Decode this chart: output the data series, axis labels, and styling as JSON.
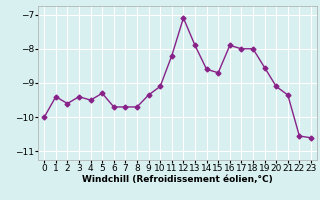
{
  "x": [
    0,
    1,
    2,
    3,
    4,
    5,
    6,
    7,
    8,
    9,
    10,
    11,
    12,
    13,
    14,
    15,
    16,
    17,
    18,
    19,
    20,
    21,
    22,
    23
  ],
  "y": [
    -10.0,
    -9.4,
    -9.6,
    -9.4,
    -9.5,
    -9.3,
    -9.7,
    -9.7,
    -9.7,
    -9.35,
    -9.1,
    -8.2,
    -7.1,
    -7.9,
    -8.6,
    -8.7,
    -7.9,
    -8.0,
    -8.0,
    -8.55,
    -9.1,
    -9.35,
    -10.55,
    -10.6
  ],
  "line_color": "#882288",
  "marker": "D",
  "markersize": 2.5,
  "linewidth": 1.0,
  "bg_color": "#d8f0f0",
  "grid_color": "#ffffff",
  "xlabel": "Windchill (Refroidissement éolien,°C)",
  "xlim": [
    -0.5,
    23.5
  ],
  "ylim": [
    -11.25,
    -6.75
  ],
  "yticks": [
    -11,
    -10,
    -9,
    -8,
    -7
  ],
  "xtick_labels": [
    "0",
    "1",
    "2",
    "3",
    "4",
    "5",
    "6",
    "7",
    "8",
    "9",
    "10",
    "11",
    "12",
    "13",
    "14",
    "15",
    "16",
    "17",
    "18",
    "19",
    "20",
    "21",
    "22",
    "23"
  ],
  "xlabel_fontsize": 6.5,
  "tick_fontsize": 6.5
}
